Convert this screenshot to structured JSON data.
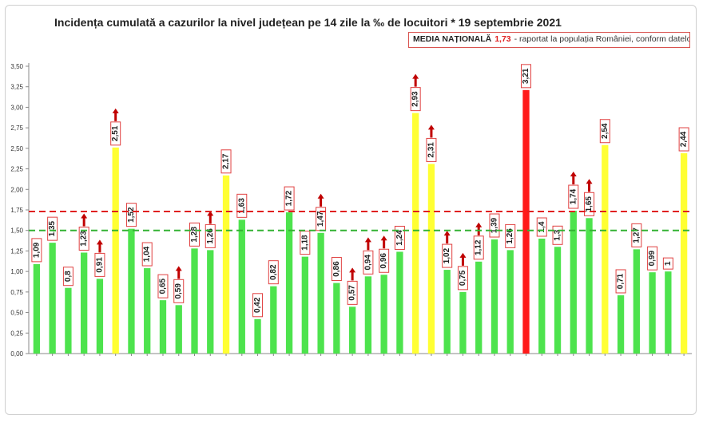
{
  "chart_data": {
    "type": "bar",
    "title": "Incidența cumulată a cazurilor la nivel județean pe 14 zile la ‰ de locuitori * 19 septembrie 2021",
    "ylim": [
      0,
      3.5
    ],
    "yticks": [
      "0,00",
      "0,25",
      "0,50",
      "0,75",
      "1,00",
      "1,25",
      "1,50",
      "1,75",
      "2,00",
      "2,25",
      "2,50",
      "2,75",
      "3,00",
      "3,25",
      "3,50"
    ],
    "reference_lines": [
      {
        "value": 1.73,
        "color": "#e02020",
        "style": "dashed"
      },
      {
        "value": 1.5,
        "color": "#33b233",
        "style": "dashed"
      }
    ],
    "bars": [
      {
        "value": 1.09,
        "label": "1,09",
        "color": "#4de34d",
        "arrow": false
      },
      {
        "value": 1.35,
        "label": "1,35",
        "color": "#4de34d",
        "arrow": false
      },
      {
        "value": 0.8,
        "label": "0,8",
        "color": "#4de34d",
        "arrow": false
      },
      {
        "value": 1.23,
        "label": "1,23",
        "color": "#4de34d",
        "arrow": true
      },
      {
        "value": 0.91,
        "label": "0,91",
        "color": "#4de34d",
        "arrow": true
      },
      {
        "value": 2.51,
        "label": "2,51",
        "color": "#ffff33",
        "arrow": true
      },
      {
        "value": 1.52,
        "label": "1,52",
        "color": "#4de34d",
        "arrow": false
      },
      {
        "value": 1.04,
        "label": "1,04",
        "color": "#4de34d",
        "arrow": false
      },
      {
        "value": 0.65,
        "label": "0,65",
        "color": "#4de34d",
        "arrow": false
      },
      {
        "value": 0.59,
        "label": "0,59",
        "color": "#4de34d",
        "arrow": true
      },
      {
        "value": 1.28,
        "label": "1,28",
        "color": "#4de34d",
        "arrow": false
      },
      {
        "value": 1.26,
        "label": "1,26",
        "color": "#4de34d",
        "arrow": true
      },
      {
        "value": 2.17,
        "label": "2,17",
        "color": "#ffff33",
        "arrow": false
      },
      {
        "value": 1.63,
        "label": "1,63",
        "color": "#4de34d",
        "arrow": false
      },
      {
        "value": 0.42,
        "label": "0,42",
        "color": "#4de34d",
        "arrow": false
      },
      {
        "value": 0.82,
        "label": "0,82",
        "color": "#4de34d",
        "arrow": false
      },
      {
        "value": 1.72,
        "label": "1,72",
        "color": "#4de34d",
        "arrow": false
      },
      {
        "value": 1.18,
        "label": "1,18",
        "color": "#4de34d",
        "arrow": false
      },
      {
        "value": 1.47,
        "label": "1,47",
        "color": "#4de34d",
        "arrow": true
      },
      {
        "value": 0.86,
        "label": "0,86",
        "color": "#4de34d",
        "arrow": false
      },
      {
        "value": 0.57,
        "label": "0,57",
        "color": "#4de34d",
        "arrow": true
      },
      {
        "value": 0.94,
        "label": "0,94",
        "color": "#4de34d",
        "arrow": true
      },
      {
        "value": 0.96,
        "label": "0,96",
        "color": "#4de34d",
        "arrow": true
      },
      {
        "value": 1.24,
        "label": "1,24",
        "color": "#4de34d",
        "arrow": false
      },
      {
        "value": 2.93,
        "label": "2,93",
        "color": "#ffff33",
        "arrow": true
      },
      {
        "value": 2.31,
        "label": "2,31",
        "color": "#ffff33",
        "arrow": true
      },
      {
        "value": 1.02,
        "label": "1,02",
        "color": "#4de34d",
        "arrow": true
      },
      {
        "value": 0.75,
        "label": "0,75",
        "color": "#4de34d",
        "arrow": true
      },
      {
        "value": 1.12,
        "label": "1,12",
        "color": "#4de34d",
        "arrow": true
      },
      {
        "value": 1.39,
        "label": "1,39",
        "color": "#4de34d",
        "arrow": false
      },
      {
        "value": 1.26,
        "label": "1,26",
        "color": "#4de34d",
        "arrow": false
      },
      {
        "value": 3.21,
        "label": "3,21",
        "color": "#ff1a1a",
        "arrow": false
      },
      {
        "value": 1.4,
        "label": "1,4",
        "color": "#4de34d",
        "arrow": false
      },
      {
        "value": 1.3,
        "label": "1,3",
        "color": "#4de34d",
        "arrow": false
      },
      {
        "value": 1.74,
        "label": "1,74",
        "color": "#4de34d",
        "arrow": true
      },
      {
        "value": 1.65,
        "label": "1,65",
        "color": "#4de34d",
        "arrow": true
      },
      {
        "value": 2.54,
        "label": "2,54",
        "color": "#ffff33",
        "arrow": false
      },
      {
        "value": 0.71,
        "label": "0,71",
        "color": "#4de34d",
        "arrow": false
      },
      {
        "value": 1.27,
        "label": "1,27",
        "color": "#4de34d",
        "arrow": false
      },
      {
        "value": 0.99,
        "label": "0,99",
        "color": "#4de34d",
        "arrow": false
      },
      {
        "value": 1,
        "label": "1",
        "color": "#4de34d",
        "arrow": false
      },
      {
        "value": 2.44,
        "label": "2,44",
        "color": "#ffff33",
        "arrow": false
      }
    ]
  },
  "legend": {
    "label": "MEDIA NAȚIONALĂ",
    "value": "1,73",
    "note": "- raportat la populația României, conform datelor INS"
  }
}
